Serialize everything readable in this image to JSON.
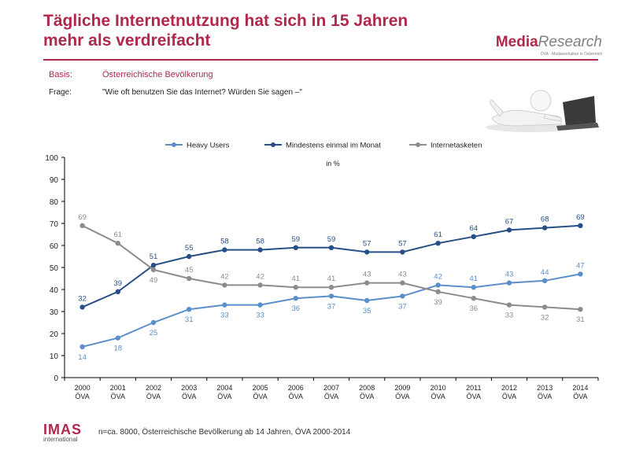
{
  "header": {
    "title_line1": "Tägliche Internetnutzung hat sich in 15 Jahren",
    "title_line2": "mehr als verdreifacht"
  },
  "logo": {
    "part1": "Media",
    "part2": "Research",
    "tagline": "ÖVA - Mediaverhalten in Österreich"
  },
  "basis": {
    "label": "Basis:",
    "value": "Österreichische Bevölkerung"
  },
  "frage": {
    "label": "Frage:",
    "value": "\"Wie oft benutzen Sie das Internet? Würden Sie sagen –\""
  },
  "footer": {
    "brand": "IMAS",
    "brand_sub": "international",
    "note": "n=ca. 8000, Österreichische Bevölkerung ab 14 Jahren, ÖVA 2000-2014"
  },
  "chart_data": {
    "type": "line",
    "unit_note": "in %",
    "categories": [
      "2000",
      "2001",
      "2002",
      "2003",
      "2004",
      "2005",
      "2006",
      "2007",
      "2008",
      "2009",
      "2010",
      "2011",
      "2012",
      "2013",
      "2014"
    ],
    "category_sublabel": "ÖVA",
    "ylim": [
      0,
      100
    ],
    "yticks": [
      0,
      10,
      20,
      30,
      40,
      50,
      60,
      70,
      80,
      90,
      100
    ],
    "legend_position": "top",
    "series": [
      {
        "name": "Heavy Users",
        "color": "#5b8fc9",
        "values": [
          14,
          18,
          25,
          31,
          33,
          33,
          36,
          37,
          35,
          37,
          42,
          41,
          43,
          44,
          47
        ],
        "label_side": [
          "below",
          "below",
          "below",
          "below",
          "below",
          "below",
          "below",
          "below",
          "below",
          "below",
          "above",
          "above",
          "above",
          "above",
          "above"
        ]
      },
      {
        "name": "Mindestens einmal im Monat",
        "color": "#274f86",
        "values": [
          32,
          39,
          51,
          55,
          58,
          58,
          59,
          59,
          57,
          57,
          61,
          64,
          67,
          68,
          69
        ],
        "label_side": [
          "above",
          "above",
          "above",
          "above",
          "above",
          "above",
          "above",
          "above",
          "above",
          "above",
          "above",
          "above",
          "above",
          "above",
          "above"
        ]
      },
      {
        "name": "Internetasketen",
        "color": "#8c8c8c",
        "values": [
          69,
          61,
          49,
          45,
          42,
          42,
          41,
          41,
          43,
          43,
          39,
          36,
          33,
          32,
          31
        ],
        "label_side": [
          "above",
          "above",
          "below",
          "above",
          "above",
          "above",
          "above",
          "above",
          "above",
          "above",
          "below",
          "below",
          "below",
          "below",
          "below"
        ]
      }
    ]
  }
}
